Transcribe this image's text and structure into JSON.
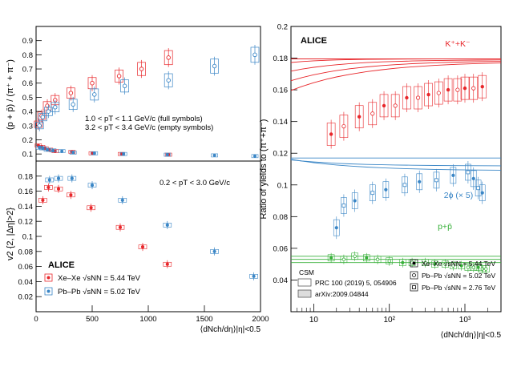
{
  "colors": {
    "red": "#e8262a",
    "blue": "#3a86c6",
    "green": "#38b03a",
    "frame": "#000000"
  },
  "chart_data": [
    {
      "type": "scatter",
      "panel": "top-left",
      "ylabel": "(p + p̄) / (π⁺ + π⁻)",
      "xlim": [
        0,
        2000
      ],
      "ylim": [
        0.05,
        1.0
      ],
      "yticks": [
        "0.1",
        "0.2",
        "0.3",
        "0.4",
        "0.5",
        "0.6",
        "0.7",
        "0.8",
        "0.9"
      ],
      "annotations": [
        "1.0 < pT < 1.1 GeV/c (full symbols)",
        "3.2 < pT < 3.4 GeV/c (empty symbols)"
      ],
      "series": [
        {
          "name": "Xe–Xe √sNN = 5.44 TeV, 1.0<pT<1.1",
          "marker": "filled",
          "color": "red",
          "x": [
            20,
            50,
            80,
            120,
            170,
            320,
            500,
            760,
            1180
          ],
          "y": [
            0.16,
            0.15,
            0.14,
            0.13,
            0.12,
            0.115,
            0.105,
            0.1,
            0.095
          ]
        },
        {
          "name": "Pb–Pb √sNN = 5.02 TeV, 1.0<pT<1.1",
          "marker": "filled",
          "color": "blue",
          "x": [
            30,
            60,
            100,
            150,
            230,
            330,
            520,
            780,
            1170,
            1590,
            1950
          ],
          "y": [
            0.145,
            0.14,
            0.13,
            0.125,
            0.12,
            0.11,
            0.105,
            0.1,
            0.095,
            0.09,
            0.085
          ]
        },
        {
          "name": "Xe–Xe √sNN = 5.44 TeV, 3.2<pT<3.4",
          "marker": "open",
          "color": "red",
          "x": [
            20,
            50,
            100,
            170,
            310,
            500,
            740,
            940,
            1180
          ],
          "y": [
            0.31,
            0.37,
            0.44,
            0.48,
            0.53,
            0.6,
            0.65,
            0.7,
            0.78
          ]
        },
        {
          "name": "Pb–Pb √sNN = 5.02 TeV, 3.2<pT<3.4",
          "marker": "open",
          "color": "blue",
          "x": [
            30,
            60,
            110,
            170,
            330,
            520,
            790,
            1180,
            1590,
            1950
          ],
          "y": [
            0.3,
            0.36,
            0.4,
            0.43,
            0.45,
            0.52,
            0.58,
            0.62,
            0.72,
            0.8
          ]
        }
      ]
    },
    {
      "type": "scatter",
      "panel": "bottom-left",
      "ylabel": "v2 {2, |Δη|>2}",
      "xlabel": "⟨dNch/dη⟩|η|<0.5",
      "xlim": [
        0,
        2000
      ],
      "ylim": [
        0.0,
        0.2
      ],
      "xticks": [
        "0",
        "500",
        "1000",
        "1500",
        "2000"
      ],
      "yticks": [
        "0.02",
        "0.04",
        "0.06",
        "0.08",
        "0.1",
        "0.12",
        "0.14",
        "0.16",
        "0.18"
      ],
      "annotations": [
        "0.2 < pT < 3.0 GeV/c",
        "ALICE"
      ],
      "legend": [
        "Xe–Xe √sNN = 5.44 TeV",
        "Pb–Pb √sNN = 5.02 TeV"
      ],
      "series": [
        {
          "name": "Xe–Xe √sNN = 5.44 TeV",
          "color": "red",
          "x": [
            60,
            110,
            200,
            310,
            490,
            750,
            950,
            1170
          ],
          "y": [
            0.148,
            0.165,
            0.163,
            0.155,
            0.138,
            0.112,
            0.086,
            0.063
          ]
        },
        {
          "name": "Pb–Pb √sNN = 5.02 TeV",
          "color": "blue",
          "x": [
            120,
            200,
            320,
            500,
            770,
            1170,
            1590,
            1940
          ],
          "y": [
            0.175,
            0.177,
            0.177,
            0.168,
            0.148,
            0.115,
            0.08,
            0.047
          ]
        }
      ]
    },
    {
      "type": "scatter",
      "panel": "right",
      "title": "ALICE",
      "ylabel": "Ratio of yields to (π⁺+π⁻)",
      "xlabel": "⟨dNch/dη⟩|η|<0.5",
      "xscale": "log",
      "xlim": [
        5,
        3000
      ],
      "ylim": [
        0.02,
        0.2
      ],
      "xticks": [
        "10",
        "10²",
        "10³"
      ],
      "yticks": [
        "0.04",
        "0.06",
        "0.08",
        "0.1",
        "0.12",
        "0.14",
        "0.16",
        "0.18",
        "0.2"
      ],
      "series_labels": [
        "K⁺+K⁻",
        "2ϕ (× 5)",
        "p+p̄"
      ],
      "legend_model": {
        "title": "CSM",
        "items": [
          "PRC 100 (2019) 5, 054906",
          "arXiv:2009.04844"
        ]
      },
      "legend_data": [
        "Xe–Xe √sNN = 5.44 TeV",
        "Pb–Pb √sNN = 5.02 TeV",
        "Pb–Pb √sNN = 2.76 TeV"
      ],
      "kaon": {
        "x": [
          17,
          25,
          40,
          60,
          85,
          120,
          170,
          240,
          330,
          450,
          600,
          800,
          1000,
          1300,
          1700
        ],
        "y": [
          0.132,
          0.137,
          0.143,
          0.145,
          0.15,
          0.15,
          0.155,
          0.155,
          0.157,
          0.158,
          0.16,
          0.16,
          0.161,
          0.161,
          0.162
        ]
      },
      "phi": {
        "x": [
          20,
          25,
          35,
          60,
          90,
          160,
          250,
          420,
          700,
          1100,
          1300,
          1500,
          1700
        ],
        "y": [
          0.073,
          0.087,
          0.09,
          0.095,
          0.097,
          0.1,
          0.102,
          0.103,
          0.106,
          0.108,
          0.104,
          0.098,
          0.095
        ]
      },
      "proton": {
        "x": [
          17,
          25,
          35,
          50,
          70,
          100,
          150,
          200,
          300,
          400,
          550,
          700,
          900,
          1100,
          1300,
          1500,
          1700,
          1900
        ],
        "y": [
          0.054,
          0.053,
          0.055,
          0.054,
          0.053,
          0.052,
          0.051,
          0.051,
          0.051,
          0.05,
          0.05,
          0.049,
          0.049,
          0.048,
          0.048,
          0.048,
          0.047,
          0.047
        ]
      }
    }
  ]
}
